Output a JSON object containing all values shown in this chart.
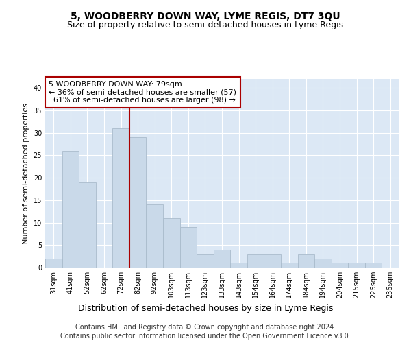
{
  "title": "5, WOODBERRY DOWN WAY, LYME REGIS, DT7 3QU",
  "subtitle": "Size of property relative to semi-detached houses in Lyme Regis",
  "xlabel": "Distribution of semi-detached houses by size in Lyme Regis",
  "ylabel": "Number of semi-detached properties",
  "categories": [
    "31sqm",
    "41sqm",
    "52sqm",
    "62sqm",
    "72sqm",
    "82sqm",
    "92sqm",
    "103sqm",
    "113sqm",
    "123sqm",
    "133sqm",
    "143sqm",
    "154sqm",
    "164sqm",
    "174sqm",
    "184sqm",
    "194sqm",
    "204sqm",
    "215sqm",
    "225sqm",
    "235sqm"
  ],
  "values": [
    2,
    26,
    19,
    0,
    31,
    29,
    14,
    11,
    9,
    3,
    4,
    1,
    3,
    3,
    1,
    3,
    2,
    1,
    1,
    1,
    0
  ],
  "bar_color": "#c9d9e9",
  "bar_edge_color": "#aabccc",
  "vline_x": 4.5,
  "vline_color": "#aa0000",
  "annotation_text": "5 WOODBERRY DOWN WAY: 79sqm\n← 36% of semi-detached houses are smaller (57)\n  61% of semi-detached houses are larger (98) →",
  "annotation_box_color": "#ffffff",
  "annotation_box_edge": "#aa0000",
  "ylim": [
    0,
    42
  ],
  "yticks": [
    0,
    5,
    10,
    15,
    20,
    25,
    30,
    35,
    40
  ],
  "background_color": "#dce8f5",
  "grid_color": "#ffffff",
  "footer_line1": "Contains HM Land Registry data © Crown copyright and database right 2024.",
  "footer_line2": "Contains public sector information licensed under the Open Government Licence v3.0.",
  "title_fontsize": 10,
  "subtitle_fontsize": 9,
  "xlabel_fontsize": 9,
  "ylabel_fontsize": 8,
  "tick_fontsize": 7,
  "footer_fontsize": 7,
  "annotation_fontsize": 8
}
